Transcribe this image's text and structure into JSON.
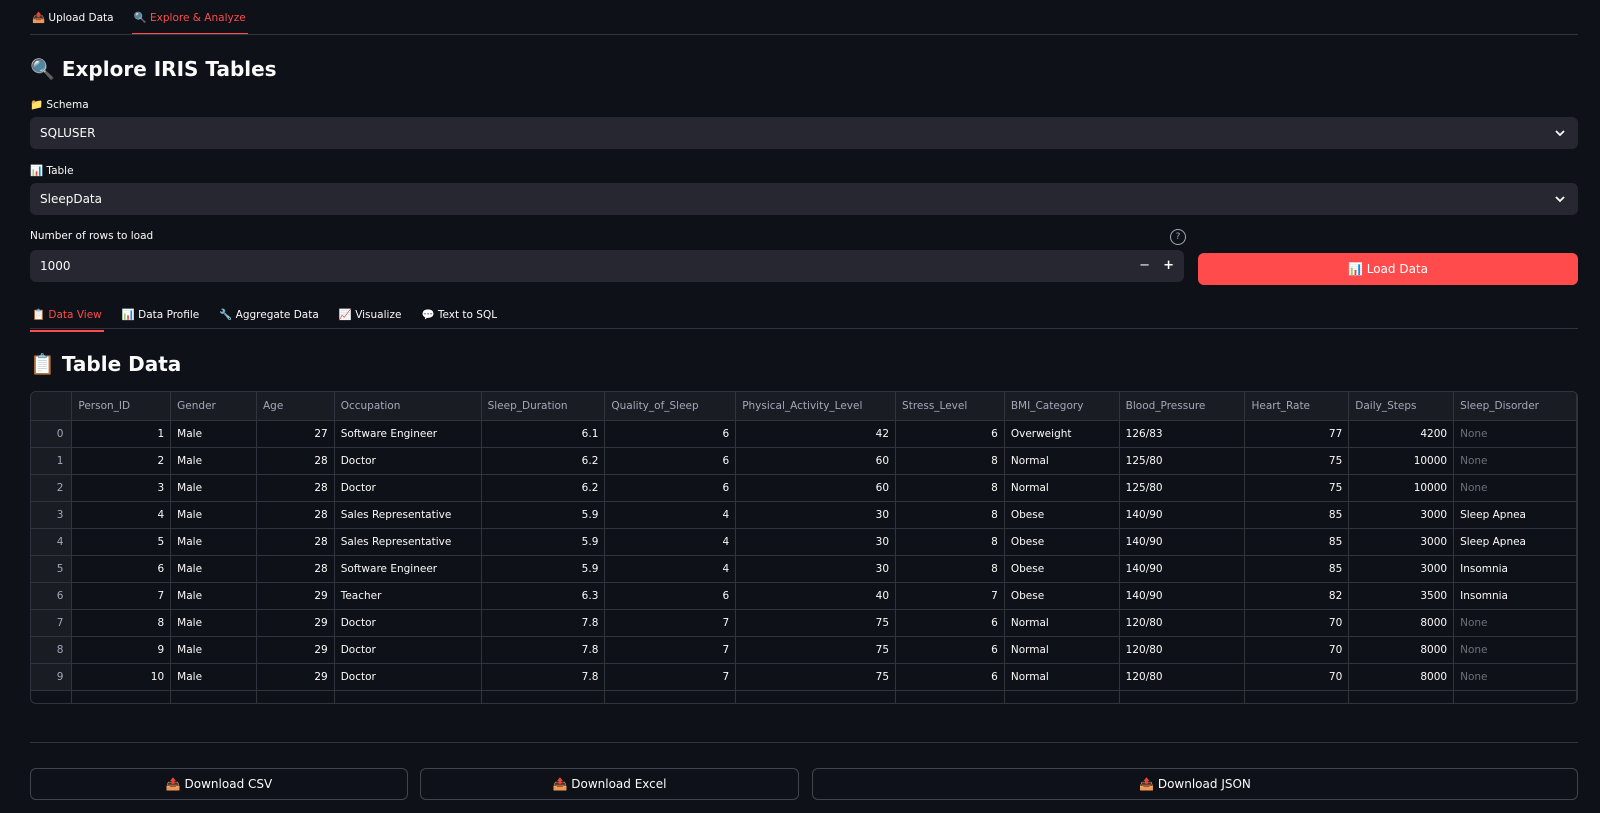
{
  "top_tabs": [
    "📤 Upload Data",
    "🔍 Explore & Analyze"
  ],
  "title": "🔍 Explore IRIS Tables",
  "schema": {
    "label": "📁 Schema",
    "value": "SQLUSER"
  },
  "table_select": {
    "label": "📊 Table",
    "value": "SleepData"
  },
  "rows_input": {
    "label": "Number of rows to load",
    "value": 1000,
    "minus": "−",
    "plus": "+",
    "help": "?"
  },
  "load_button": "📊 Load Data",
  "sub_tabs": [
    "📋 Data View",
    "📊 Data Profile",
    "🔧 Aggregate Data",
    "📈 Visualize",
    "💬 Text to SQL"
  ],
  "section_title": "📋 Table Data",
  "table": {
    "columns": [
      "Person_ID",
      "Gender",
      "Age",
      "Occupation",
      "Sleep_Duration",
      "Quality_of_Sleep",
      "Physical_Activity_Level",
      "Stress_Level",
      "BMI_Category",
      "Blood_Pressure",
      "Heart_Rate",
      "Daily_Steps",
      "Sleep_Disorder"
    ],
    "index": [
      0,
      1,
      2,
      3,
      4,
      5,
      6,
      7,
      8,
      9
    ],
    "rows": [
      [
        1,
        "Male",
        27,
        "Software Engineer",
        6.1,
        6,
        42,
        6,
        "Overweight",
        "126/83",
        77,
        4200,
        "None"
      ],
      [
        2,
        "Male",
        28,
        "Doctor",
        6.2,
        6,
        60,
        8,
        "Normal",
        "125/80",
        75,
        10000,
        "None"
      ],
      [
        3,
        "Male",
        28,
        "Doctor",
        6.2,
        6,
        60,
        8,
        "Normal",
        "125/80",
        75,
        10000,
        "None"
      ],
      [
        4,
        "Male",
        28,
        "Sales Representative",
        5.9,
        4,
        30,
        8,
        "Obese",
        "140/90",
        85,
        3000,
        "Sleep Apnea"
      ],
      [
        5,
        "Male",
        28,
        "Sales Representative",
        5.9,
        4,
        30,
        8,
        "Obese",
        "140/90",
        85,
        3000,
        "Sleep Apnea"
      ],
      [
        6,
        "Male",
        28,
        "Software Engineer",
        5.9,
        4,
        30,
        8,
        "Obese",
        "140/90",
        85,
        3000,
        "Insomnia"
      ],
      [
        7,
        "Male",
        29,
        "Teacher",
        6.3,
        6,
        40,
        7,
        "Obese",
        "140/90",
        82,
        3500,
        "Insomnia"
      ],
      [
        8,
        "Male",
        29,
        "Doctor",
        7.8,
        7,
        75,
        6,
        "Normal",
        "120/80",
        70,
        8000,
        "None"
      ],
      [
        9,
        "Male",
        29,
        "Doctor",
        7.8,
        7,
        75,
        6,
        "Normal",
        "120/80",
        70,
        8000,
        "None"
      ],
      [
        10,
        "Male",
        29,
        "Doctor",
        7.8,
        7,
        75,
        6,
        "Normal",
        "120/80",
        70,
        8000,
        "None"
      ]
    ]
  },
  "downloads": [
    "📤 Download CSV",
    "📤 Download Excel",
    "📤 Download JSON"
  ]
}
